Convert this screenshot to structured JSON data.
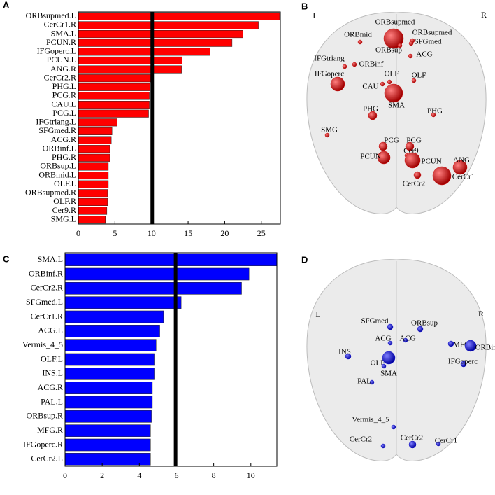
{
  "chart_data": [
    {
      "panel": "A",
      "type": "bar",
      "orientation": "horizontal",
      "color": "#ff0000",
      "categories": [
        "ORBsupmed.L",
        "CerCr1.R",
        "SMA.L",
        "PCUN.R",
        "IFGoperc.L",
        "PCUN.L",
        "ANG.R",
        "CerCr2.R",
        "PHG.L",
        "PCG.R",
        "CAU.L",
        "PCG.L",
        "IFGtriang.L",
        "SFGmed.R",
        "ACG.R",
        "ORBinf.L",
        "PHG.R",
        "ORBsup.L",
        "ORBmid.L",
        "OLF.L",
        "ORBsupmed.R",
        "OLF.R",
        "Cer9.R",
        "SMG.L"
      ],
      "values": [
        27.5,
        24.6,
        22.5,
        21.0,
        18.0,
        14.2,
        14.1,
        9.9,
        9.8,
        9.7,
        9.7,
        9.6,
        5.3,
        4.6,
        4.5,
        4.3,
        4.3,
        4.1,
        4.1,
        4.1,
        4.0,
        4.0,
        3.9,
        3.7
      ],
      "xlim": [
        0,
        27.6
      ],
      "xticks": [
        0,
        5,
        10,
        15,
        20,
        25
      ],
      "threshold": 10.1
    },
    {
      "panel": "C",
      "type": "bar",
      "orientation": "horizontal",
      "color": "#0000ff",
      "categories": [
        "SMA.L",
        "ORBinf.R",
        "CerCr2.R",
        "SFGmed.L",
        "CerCr1.R",
        "ACG.L",
        "Vermis_4_5",
        "OLF.L",
        "INS.L",
        "ACG.R",
        "PAL.L",
        "ORBsup.R",
        "MFG.R",
        "IFGoperc.R",
        "CerCr2.L"
      ],
      "values": [
        11.4,
        9.9,
        9.5,
        6.25,
        5.3,
        5.1,
        4.9,
        4.8,
        4.8,
        4.7,
        4.7,
        4.65,
        4.6,
        4.6,
        4.6
      ],
      "xlim": [
        0,
        11.4
      ],
      "xticks": [
        0,
        2,
        4,
        6,
        8,
        10
      ],
      "threshold": 5.95
    }
  ],
  "brain_maps": [
    {
      "panel": "B",
      "left": "L",
      "right": "R",
      "node_color": "#d01010",
      "nodes": [
        "ORBsupmed",
        "ORBmid",
        "ORBsupmed",
        "SFGmed",
        "ORBsup",
        "ACG",
        "IFGtriang",
        "ORBinf",
        "IFGoperc",
        "OLF",
        "OLF",
        "CAU",
        "SMA",
        "PHG",
        "PHG",
        "SMG",
        "PCG",
        "PCG",
        "Cer9",
        "PCUN",
        "PCUN",
        "ANG",
        "CerCr2",
        "CerCr1"
      ]
    },
    {
      "panel": "D",
      "left": "L",
      "right": "R",
      "node_color": "#1a1ad0",
      "nodes": [
        "SFGmed",
        "ORBsup",
        "ACG",
        "ACG",
        "MFG",
        "ORBinf",
        "IFGoperc",
        "INS",
        "OLF",
        "SMA",
        "PAL",
        "Vermis_4_5",
        "CerCr2",
        "CerCr2",
        "CerCr1"
      ]
    }
  ]
}
